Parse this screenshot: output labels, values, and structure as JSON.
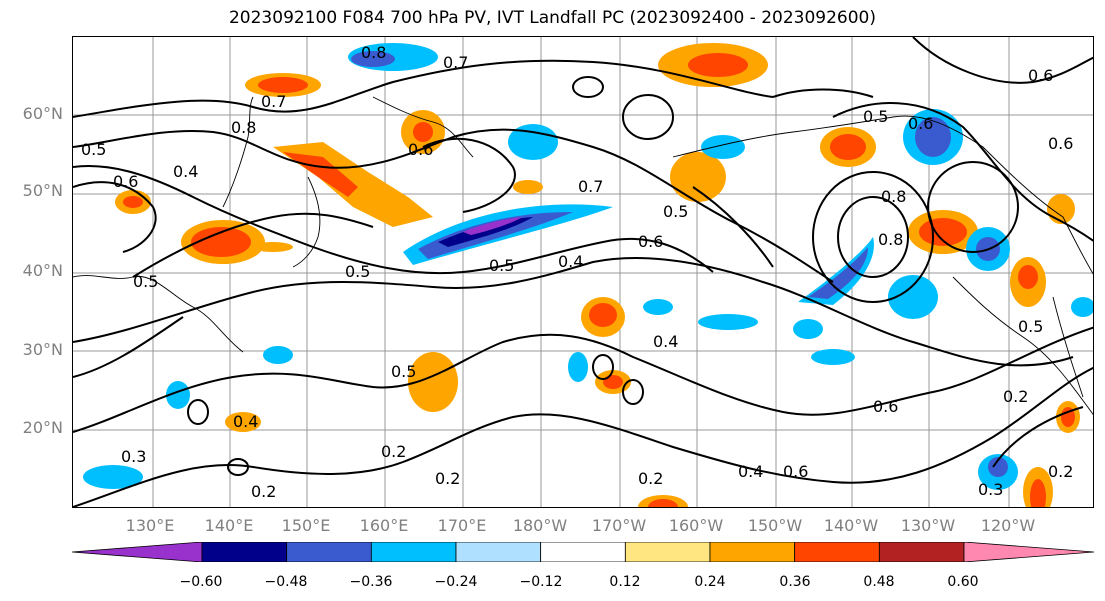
{
  "title": "2023092100 F084 700 hPa PV, IVT Landfall PC (2023092400 - 2023092600)",
  "lat_labels": [
    "60°N",
    "50°N",
    "40°N",
    "30°N",
    "20°N"
  ],
  "lon_labels": [
    "130°E",
    "140°E",
    "150°E",
    "160°E",
    "170°E",
    "180°W",
    "170°W",
    "160°W",
    "150°W",
    "140°W",
    "130°W",
    "120°W"
  ],
  "contour_labels": [
    "0.8",
    "0.7",
    "0.6",
    "0.7",
    "0.8",
    "0.5",
    "0.4",
    "0.6",
    "0.7",
    "0.6",
    "0.5",
    "0.6",
    "0.5",
    "0.4",
    "0.6",
    "0.8",
    "0.8",
    "0.5",
    "0.5",
    "0.5",
    "0.4",
    "0.4",
    "0.5",
    "0.4",
    "0.6",
    "0.3",
    "0.2",
    "0.2",
    "0.2",
    "0.2",
    "0.6",
    "0.2",
    "0.3",
    "0.2",
    "0.5",
    "0.6"
  ],
  "colorbar": {
    "ticks": [
      "−0.60",
      "−0.48",
      "−0.36",
      "−0.24",
      "−0.12",
      "0.12",
      "0.24",
      "0.36",
      "0.48",
      "0.60"
    ],
    "colors": [
      "#9932cc",
      "#00008b",
      "#3a5bd0",
      "#00bfff",
      "#b0e0ff",
      "#ffffff",
      "#ffe680",
      "#ffa500",
      "#ff4500",
      "#b22222",
      "#ff88b0"
    ]
  }
}
